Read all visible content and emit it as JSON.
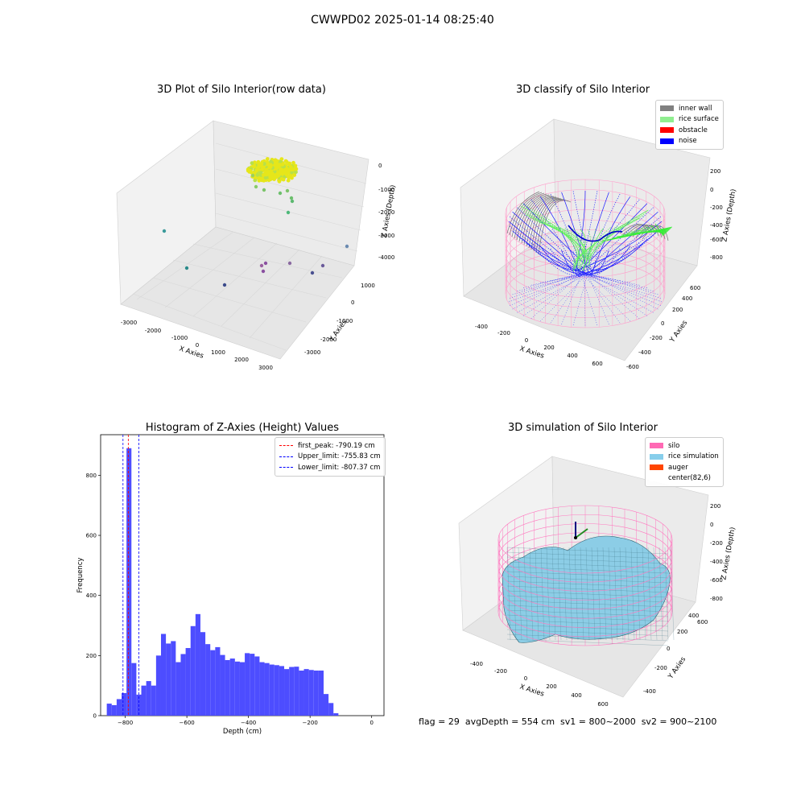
{
  "suptitle": "CWWPD02 2025-01-14 08:25:40",
  "panels": {
    "raw": {
      "title": "3D Plot of Silo Interior(row data)",
      "xlabel": "X Axies",
      "ylabel": "Y Axies",
      "zlabel": "Z Axies (Depth)",
      "xticks": [
        "-3000",
        "-2000",
        "-1000",
        "0",
        "1000",
        "2000",
        "3000"
      ],
      "yticks": [
        "-3000",
        "-2000",
        "-1000",
        "0",
        "1000"
      ],
      "zticks": [
        "0",
        "-1000",
        "-2000",
        "-3000",
        "-4000"
      ]
    },
    "classify": {
      "title": "3D classify of Silo Interior",
      "xlabel": "X Axies",
      "ylabel": "Y Axies",
      "zlabel": "Z Axies (Depth)",
      "xticks": [
        "-400",
        "-200",
        "0",
        "200",
        "400",
        "600"
      ],
      "yticks": [
        "-600",
        "-400",
        "-200",
        "0",
        "200",
        "400",
        "600"
      ],
      "zticks": [
        "200",
        "0",
        "-200",
        "-400",
        "-600",
        "-800"
      ],
      "legend": [
        {
          "label": "inner wall",
          "color": "#808080"
        },
        {
          "label": "rice surface",
          "color": "#90ee90"
        },
        {
          "label": "obstacle",
          "color": "#ff0000"
        },
        {
          "label": "noise",
          "color": "#0000ff"
        }
      ]
    },
    "histogram": {
      "title": "Histogram of Z-Axies (Height) Values",
      "xlabel": "Depth (cm)",
      "ylabel": "Frequency",
      "legend": [
        {
          "label": "first_peak: -790.19 cm",
          "color": "#ff0000"
        },
        {
          "label": "Upper_limit: -755.83 cm",
          "color": "#0000ff"
        },
        {
          "label": "Lower_limit: -807.37 cm",
          "color": "#0000ff"
        }
      ]
    },
    "simulation": {
      "title": "3D simulation of Silo Interior",
      "xlabel": "X Axies",
      "ylabel": "Y Axies",
      "zlabel": "Z Axies (Depth)",
      "xticks": [
        "-400",
        "-200",
        "0",
        "200",
        "400",
        "600"
      ],
      "yticks": [
        "-400",
        "-200",
        "0",
        "200",
        "400",
        "600"
      ],
      "zticks": [
        "200",
        "0",
        "-200",
        "-400",
        "-600",
        "-800"
      ],
      "legend": [
        {
          "label": "silo",
          "color": "#ff69b4"
        },
        {
          "label": "rice simulation",
          "color": "#87ceeb"
        },
        {
          "label": "auger",
          "color": "#ff4500"
        },
        {
          "label": "center(82,6)",
          "color": "#ffffff"
        }
      ]
    }
  },
  "bottom_text": "flag = 29  avgDepth = 554 cm  sv1 = 800~2000  sv2 = 900~2100",
  "chart_data": [
    {
      "type": "bar",
      "title": "Histogram of Z-Axies (Height) Values",
      "xlabel": "Depth (cm)",
      "ylabel": "Frequency",
      "xlim": [
        -880,
        40
      ],
      "ylim": [
        0,
        935
      ],
      "xticks": [
        -800,
        -600,
        -400,
        -200,
        0
      ],
      "yticks": [
        0,
        200,
        400,
        600,
        800
      ],
      "bin_width": 16,
      "bin_start": -860,
      "values": [
        40,
        35,
        55,
        75,
        890,
        175,
        70,
        100,
        115,
        100,
        200,
        272,
        240,
        248,
        178,
        205,
        225,
        298,
        338,
        278,
        238,
        218,
        228,
        202,
        185,
        190,
        180,
        178,
        208,
        206,
        197,
        178,
        175,
        170,
        168,
        165,
        155,
        162,
        163,
        150,
        155,
        152,
        150,
        150,
        72,
        42,
        8
      ],
      "lines": [
        {
          "name": "first_peak",
          "x": -790.19,
          "color": "#ff0000"
        },
        {
          "name": "Upper_limit",
          "x": -755.83,
          "color": "#0000ff"
        },
        {
          "name": "Lower_limit",
          "x": -807.37,
          "color": "#0000ff"
        }
      ],
      "bar_color": "#4d4dff"
    }
  ]
}
